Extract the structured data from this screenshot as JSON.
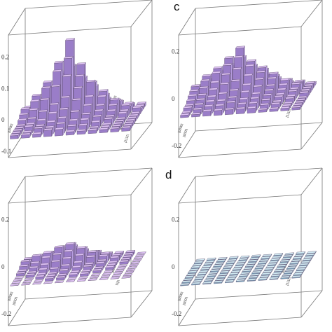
{
  "panel_letters": {
    "c": "c",
    "d": "d"
  },
  "colors": {
    "bar_top": "#dcc0f2",
    "bar_left": "#9a7dc8",
    "bar_right": "#b79de0",
    "flat_top": "#cfe7f0",
    "flat_left": "#7fb0c8",
    "flat_right": "#a6cddd",
    "box": "#777777",
    "edge": "#5a4a6a"
  },
  "chart_data": [
    {
      "type": "bar3d",
      "panel": "a",
      "grid_size": 11,
      "zlim": [
        -0.12,
        0.27
      ],
      "z_ticks": [
        "0.2",
        "0.1",
        "0",
        "-0.1"
      ],
      "axis_labels": [
        "|0000\\",
        "|000\\\\",
        "|0000\\",
        "|0001\\",
        "\\\\\\|\\\\",
        "|1111\\"
      ],
      "heights": [
        [
          0.02,
          0.03,
          0.01,
          0.04,
          0.05,
          0.02,
          0.03,
          0.01,
          0.02,
          0.01,
          0.01
        ],
        [
          0.03,
          0.05,
          0.06,
          0.08,
          0.1,
          0.07,
          0.05,
          0.04,
          0.03,
          0.02,
          0.01
        ],
        [
          0.02,
          0.06,
          0.1,
          0.14,
          0.16,
          0.12,
          0.09,
          0.06,
          0.04,
          0.02,
          0.01
        ],
        [
          0.04,
          0.08,
          0.12,
          0.18,
          0.25,
          0.17,
          0.11,
          0.08,
          0.05,
          0.03,
          0.02
        ],
        [
          0.03,
          0.07,
          0.11,
          0.16,
          0.2,
          0.14,
          0.12,
          0.07,
          0.04,
          0.02,
          0.01
        ],
        [
          0.02,
          0.05,
          0.08,
          0.12,
          0.15,
          0.11,
          0.08,
          0.05,
          0.03,
          0.02,
          0.01
        ],
        [
          0.01,
          0.03,
          0.05,
          0.07,
          0.09,
          0.08,
          0.06,
          0.04,
          0.02,
          0.01,
          0.01
        ],
        [
          0.01,
          0.02,
          0.03,
          0.05,
          0.06,
          0.05,
          0.04,
          0.03,
          0.02,
          0.01,
          0.01
        ],
        [
          0.01,
          0.02,
          0.02,
          0.03,
          0.04,
          0.03,
          0.03,
          0.02,
          0.01,
          0.01,
          0.01
        ],
        [
          0.01,
          0.01,
          0.02,
          0.02,
          0.03,
          0.02,
          0.02,
          0.01,
          0.01,
          0.01,
          0.01
        ],
        [
          0.01,
          0.01,
          0.01,
          0.02,
          0.02,
          0.01,
          0.01,
          0.01,
          0.01,
          0.01,
          0.01
        ]
      ]
    },
    {
      "type": "bar3d",
      "panel": "c",
      "grid_size": 11,
      "zlim": [
        -0.25,
        0.27
      ],
      "z_ticks": [
        "0.2",
        "0",
        "-0.2"
      ],
      "axis_labels": [
        "|0000\\",
        "|000\\\\",
        "|0001\\",
        "|1111\\"
      ],
      "heights": [
        [
          0.02,
          0.04,
          0.05,
          0.06,
          0.07,
          0.05,
          0.04,
          0.03,
          0.02,
          0.02,
          0.01
        ],
        [
          0.04,
          0.06,
          0.08,
          0.1,
          0.12,
          0.09,
          0.07,
          0.05,
          0.04,
          0.03,
          0.02
        ],
        [
          0.05,
          0.08,
          0.11,
          0.13,
          0.16,
          0.12,
          0.1,
          0.07,
          0.05,
          0.03,
          0.02
        ],
        [
          0.06,
          0.1,
          0.13,
          0.17,
          0.21,
          0.15,
          0.12,
          0.09,
          0.06,
          0.04,
          0.02
        ],
        [
          0.05,
          0.09,
          0.12,
          0.15,
          0.18,
          0.14,
          0.11,
          0.08,
          0.05,
          0.03,
          0.02
        ],
        [
          0.04,
          0.07,
          0.09,
          0.12,
          0.14,
          0.11,
          0.09,
          0.06,
          0.04,
          0.03,
          0.02
        ],
        [
          0.03,
          0.05,
          0.07,
          0.09,
          0.1,
          0.08,
          0.07,
          0.05,
          0.03,
          0.02,
          0.01
        ],
        [
          0.02,
          0.04,
          0.05,
          0.06,
          0.07,
          0.06,
          0.05,
          0.04,
          0.03,
          0.02,
          0.01
        ],
        [
          0.02,
          0.03,
          0.04,
          0.04,
          0.05,
          0.04,
          0.04,
          0.03,
          0.02,
          0.01,
          0.01
        ],
        [
          0.01,
          0.02,
          0.03,
          0.03,
          0.04,
          0.03,
          0.03,
          0.02,
          0.02,
          0.01,
          0.01
        ],
        [
          0.01,
          0.01,
          0.02,
          0.02,
          0.02,
          0.02,
          0.02,
          0.01,
          0.01,
          0.01,
          0.01
        ]
      ]
    },
    {
      "type": "bar3d",
      "panel": "b",
      "grid_size": 11,
      "zlim": [
        -0.25,
        0.27
      ],
      "z_ticks": [
        "0.2",
        "0",
        "-0.2"
      ],
      "axis_labels": [
        "|0000\\",
        "|000\\\\",
        "|0001\\",
        "\\\\\\|\\\\"
      ],
      "heights": [
        [
          0.01,
          0.02,
          0.02,
          0.03,
          0.03,
          0.02,
          0.02,
          0.01,
          0.01,
          0.01,
          0.0
        ],
        [
          0.02,
          0.03,
          0.04,
          0.05,
          0.06,
          0.04,
          0.03,
          0.02,
          0.01,
          0.01,
          0.0
        ],
        [
          0.02,
          0.04,
          0.05,
          0.07,
          0.08,
          0.06,
          0.04,
          0.03,
          0.02,
          0.01,
          0.0
        ],
        [
          0.03,
          0.05,
          0.06,
          0.08,
          0.09,
          0.07,
          0.05,
          0.03,
          0.02,
          0.01,
          0.0
        ],
        [
          0.02,
          0.03,
          0.05,
          0.06,
          0.07,
          0.05,
          0.04,
          0.02,
          0.01,
          0.01,
          0.0
        ],
        [
          0.01,
          0.02,
          0.03,
          0.04,
          0.05,
          0.03,
          0.02,
          0.02,
          0.01,
          0.0,
          0.0
        ],
        [
          0.01,
          0.01,
          0.02,
          0.02,
          0.03,
          0.02,
          0.02,
          0.01,
          0.01,
          0.0,
          0.0
        ],
        [
          0.0,
          0.01,
          0.01,
          0.01,
          0.02,
          0.01,
          0.01,
          0.01,
          0.0,
          0.0,
          0.0
        ],
        [
          0.0,
          0.0,
          0.01,
          0.01,
          0.01,
          0.01,
          0.01,
          0.0,
          0.0,
          0.0,
          0.0
        ],
        [
          0.0,
          0.0,
          0.0,
          0.01,
          0.01,
          0.0,
          0.0,
          0.0,
          0.0,
          0.0,
          0.0
        ],
        [
          0.0,
          0.0,
          0.0,
          0.0,
          0.0,
          0.0,
          0.0,
          0.0,
          0.0,
          0.0,
          0.0
        ]
      ]
    },
    {
      "type": "bar3d",
      "panel": "d",
      "grid_size": 11,
      "zlim": [
        -0.25,
        0.27
      ],
      "z_ticks": [
        "0.2",
        "0",
        "-0.2"
      ],
      "axis_labels": [
        "|0000\\",
        "|000\\\\",
        "|0001\\",
        "|1111\\"
      ],
      "heights": [
        [
          0.003,
          0.004,
          0.003,
          0.004,
          0.003,
          0.004,
          0.003,
          0.004,
          0.003,
          0.004,
          0.003
        ],
        [
          0.004,
          0.003,
          0.004,
          0.003,
          0.004,
          0.003,
          0.004,
          0.003,
          0.004,
          0.003,
          0.004
        ],
        [
          0.003,
          0.004,
          0.003,
          0.004,
          0.003,
          0.004,
          0.003,
          0.004,
          0.003,
          0.004,
          0.003
        ],
        [
          0.004,
          0.003,
          0.004,
          0.003,
          0.004,
          0.003,
          0.004,
          0.003,
          0.004,
          0.003,
          0.004
        ],
        [
          0.003,
          0.004,
          0.003,
          0.004,
          0.003,
          0.004,
          0.003,
          0.004,
          0.003,
          0.004,
          0.003
        ],
        [
          0.004,
          0.003,
          0.004,
          0.003,
          0.004,
          0.003,
          0.004,
          0.003,
          0.004,
          0.003,
          0.004
        ],
        [
          0.003,
          0.004,
          0.003,
          0.004,
          0.003,
          0.004,
          0.003,
          0.004,
          0.003,
          0.004,
          0.003
        ],
        [
          0.004,
          0.003,
          0.004,
          0.003,
          0.004,
          0.003,
          0.004,
          0.003,
          0.004,
          0.003,
          0.004
        ],
        [
          0.003,
          0.004,
          0.003,
          0.004,
          0.003,
          0.004,
          0.003,
          0.004,
          0.003,
          0.004,
          0.003
        ],
        [
          0.004,
          0.003,
          0.004,
          0.003,
          0.004,
          0.003,
          0.004,
          0.003,
          0.004,
          0.003,
          0.004
        ],
        [
          0.003,
          0.004,
          0.003,
          0.004,
          0.003,
          0.004,
          0.003,
          0.004,
          0.003,
          0.004,
          0.003
        ]
      ]
    }
  ]
}
